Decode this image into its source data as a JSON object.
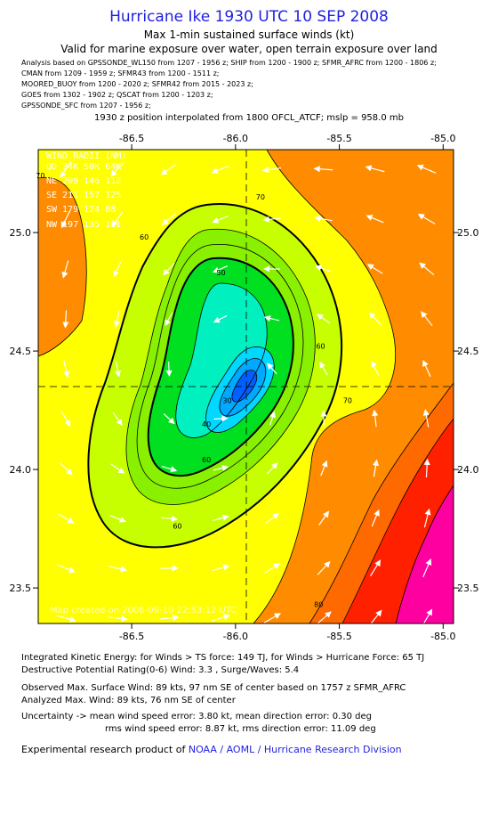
{
  "header": {
    "title": "Hurricane Ike 1930 UTC 10 SEP 2008",
    "subtitle1": "Max 1-min sustained surface winds (kt)",
    "subtitle2": "Valid for marine exposure over water, open terrain exposure over land"
  },
  "sources": [
    "Analysis based on  GPSSONDE_WL150 from 1207 - 1956 z;  SHIP from 1200 - 1900 z;  SFMR_AFRC from 1200 - 1806 z;",
    "CMAN from 1209 - 1959 z;  SFMR43 from 1200 - 1511 z;",
    "MOORED_BUOY from 1200 - 2020 z;  SFMR42 from 2015 - 2023 z;",
    "GOES from 1302 - 1902 z;  QSCAT from 1200 - 1203 z;",
    "GPSSONDE_SFC from 1207 - 1956 z;"
  ],
  "interp_note": "1930 z position interpolated from 1800 OFCL_ATCF; mslp = 958.0 mb",
  "chart_data": {
    "type": "heatmap",
    "description_kind": "filled wind-speed contours with wind vectors",
    "x_ticks": [
      "-86.5",
      "-86.0",
      "-85.5",
      "-85.0"
    ],
    "x_tick_values": [
      -86.5,
      -86.0,
      -85.5,
      -85.0
    ],
    "y_ticks": [
      "25.0",
      "24.5",
      "24.0",
      "23.5"
    ],
    "y_tick_values": [
      25.0,
      24.5,
      24.0,
      23.5
    ],
    "xlim": [
      -86.95,
      -84.95
    ],
    "ylim": [
      23.35,
      25.35
    ],
    "center": {
      "lon": -86.03,
      "lat": 24.35
    },
    "max_wind_kt": 89,
    "contour_fills": [
      {
        "min": 80,
        "color": "#ff00a0"
      },
      {
        "min": 75,
        "color": "#ff2000"
      },
      {
        "min": 70,
        "color": "#ff6a00"
      },
      {
        "min": 65,
        "color": "#ff8c00"
      },
      {
        "min": 60,
        "color": "#ffff00"
      },
      {
        "min": 55,
        "color": "#c8ff00"
      },
      {
        "min": 50,
        "color": "#88f000"
      },
      {
        "min": 45,
        "color": "#00e020"
      },
      {
        "min": 40,
        "color": "#00e48a"
      },
      {
        "min": 35,
        "color": "#00f0c0"
      },
      {
        "min": 30,
        "color": "#00f8e8"
      },
      {
        "min": 25,
        "color": "#00d8ff"
      },
      {
        "min": 20,
        "color": "#00a8ff"
      },
      {
        "min": 0,
        "color": "#0060ff"
      }
    ],
    "contour_labels": [
      {
        "text": "60",
        "lon": -86.44,
        "lat": 24.97
      },
      {
        "text": "50",
        "lon": -86.07,
        "lat": 24.82
      },
      {
        "text": "60",
        "lon": -85.59,
        "lat": 24.51
      },
      {
        "text": "70",
        "lon": -85.46,
        "lat": 24.28
      },
      {
        "text": "70",
        "lon": -85.88,
        "lat": 25.14
      },
      {
        "text": "60",
        "lon": -86.14,
        "lat": 24.03
      },
      {
        "text": "60",
        "lon": -86.28,
        "lat": 23.75
      },
      {
        "text": "80",
        "lon": -85.6,
        "lat": 23.42
      },
      {
        "text": "40",
        "lon": -86.14,
        "lat": 24.18
      },
      {
        "text": "30",
        "lon": -86.04,
        "lat": 24.28
      },
      {
        "text": "70",
        "lon": -86.94,
        "lat": 25.23
      }
    ],
    "wind_radii": {
      "title": "WIND RADII (NM)",
      "header": "QD  34K  50K  64K",
      "rows": [
        {
          "q": "NE",
          "r34": 209,
          "r50": 146,
          "r64": 112
        },
        {
          "q": "SE",
          "r34": 211,
          "r50": 157,
          "r64": 125
        },
        {
          "q": "SW",
          "r34": 179,
          "r50": 124,
          "r64": 88
        },
        {
          "q": "NW",
          "r34": 197,
          "r50": 135,
          "r64": 101
        }
      ]
    },
    "watermark": "Map created on 2008-09-10 22:53:12 UTC"
  },
  "footer": {
    "ike": "Integrated Kinetic Energy:  for Winds > TS force: 149 TJ,  for Winds > Hurricane Force: 65 TJ",
    "dpr": "Destructive Potential Rating(0-6)   Wind: 3.3 , Surge/Waves: 5.4",
    "obs_max": "Observed Max. Surface Wind: 89 kts, 97 nm SE of center based on 1757 z SFMR_AFRC",
    "analyzed_max": "Analyzed Max. Wind: 89 kts, 76 nm SE of center",
    "uncertainty1": "Uncertainty -> mean wind speed error: 3.80 kt,   mean direction error: 0.30 deg",
    "uncertainty2": "rms wind speed error: 8.87 kt,   rms direction error: 11.09 deg",
    "credit_prefix": "Experimental research product of",
    "credit_link": "NOAA / AOML / Hurricane Research Division"
  }
}
